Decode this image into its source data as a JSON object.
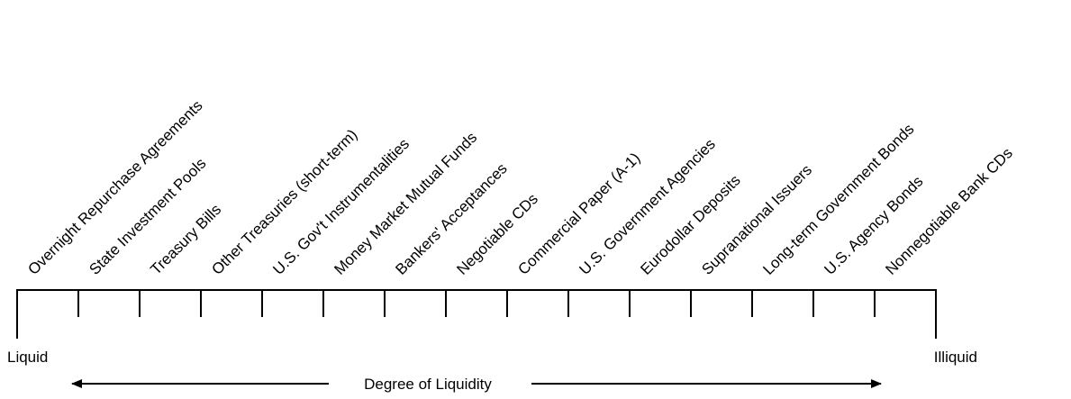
{
  "scale": {
    "items": [
      "Overnight Repurchase Agreements",
      "State Investment Pools",
      "Treasury Bills",
      "Other Treasuries (short-term)",
      "U.S. Gov't Instrumentalities",
      "Money Market Mutual Funds",
      "Bankers' Acceptances",
      "Negotiable CDs",
      "Commercial Paper (A-1)",
      "U.S. Government Agencies",
      "Eurodollar Deposits",
      "Supranational Issuers",
      "Long-term Government Bonds",
      "U.S. Agency Bonds",
      "Nonnegotiable Bank CDs"
    ],
    "left_label": "Liquid",
    "right_label": "Illiquid",
    "axis_label": "Degree of Liquidity"
  }
}
